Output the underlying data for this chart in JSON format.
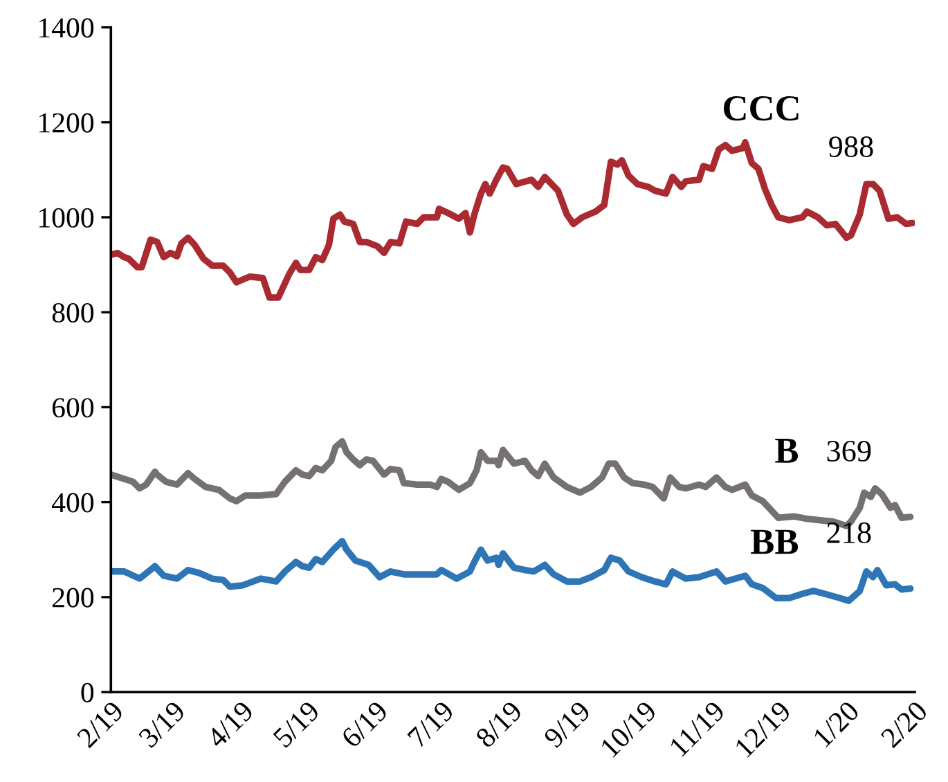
{
  "chart_data": {
    "type": "line",
    "ylim": [
      0,
      1400
    ],
    "yticks": [
      0,
      200,
      400,
      600,
      800,
      1000,
      1200,
      1400
    ],
    "xlim": [
      "2019-02-01",
      "2020-02-01"
    ],
    "xticks": [
      {
        "value": "2019-02-01",
        "label": "2/19"
      },
      {
        "value": "2019-03-01",
        "label": "3/19"
      },
      {
        "value": "2019-04-01",
        "label": "4/19"
      },
      {
        "value": "2019-05-01",
        "label": "5/19"
      },
      {
        "value": "2019-06-01",
        "label": "6/19"
      },
      {
        "value": "2019-07-01",
        "label": "7/19"
      },
      {
        "value": "2019-08-01",
        "label": "8/19"
      },
      {
        "value": "2019-09-01",
        "label": "9/19"
      },
      {
        "value": "2019-10-01",
        "label": "10/19"
      },
      {
        "value": "2019-11-01",
        "label": "11/19"
      },
      {
        "value": "2019-12-01",
        "label": "12/19"
      },
      {
        "value": "2020-01-01",
        "label": "1/20"
      },
      {
        "value": "2020-02-01",
        "label": "2/20"
      }
    ],
    "grid": false,
    "marker": "none",
    "line_style": "solid",
    "series": [
      {
        "name": "CCC",
        "color": "#a92b31",
        "x": [
          "2019-02-01",
          "2019-02-04",
          "2019-02-07",
          "2019-02-09",
          "2019-02-13",
          "2019-02-15",
          "2019-02-19",
          "2019-02-22",
          "2019-02-25",
          "2019-02-28",
          "2019-03-03",
          "2019-03-05",
          "2019-03-08",
          "2019-03-11",
          "2019-03-15",
          "2019-03-19",
          "2019-03-24",
          "2019-03-27",
          "2019-03-30",
          "2019-04-05",
          "2019-04-11",
          "2019-04-14",
          "2019-04-18",
          "2019-04-23",
          "2019-04-26",
          "2019-04-28",
          "2019-05-02",
          "2019-05-05",
          "2019-05-08",
          "2019-05-11",
          "2019-05-13",
          "2019-05-16",
          "2019-05-18",
          "2019-05-22",
          "2019-05-25",
          "2019-05-28",
          "2019-06-02",
          "2019-06-05",
          "2019-06-08",
          "2019-06-12",
          "2019-06-15",
          "2019-06-20",
          "2019-06-23",
          "2019-06-29",
          "2019-06-30",
          "2019-07-04",
          "2019-07-09",
          "2019-07-12",
          "2019-07-14",
          "2019-07-16",
          "2019-07-19",
          "2019-07-21",
          "2019-07-23",
          "2019-07-26",
          "2019-07-29",
          "2019-07-31",
          "2019-08-04",
          "2019-08-11",
          "2019-08-14",
          "2019-08-17",
          "2019-08-23",
          "2019-08-27",
          "2019-08-30",
          "2019-09-03",
          "2019-09-09",
          "2019-09-13",
          "2019-09-16",
          "2019-09-19",
          "2019-09-21",
          "2019-09-24",
          "2019-09-28",
          "2019-10-03",
          "2019-10-06",
          "2019-10-11",
          "2019-10-14",
          "2019-10-18",
          "2019-10-20",
          "2019-10-26",
          "2019-10-28",
          "2019-11-01",
          "2019-11-04",
          "2019-11-07",
          "2019-11-10",
          "2019-11-15",
          "2019-11-16",
          "2019-11-19",
          "2019-11-22",
          "2019-11-25",
          "2019-11-28",
          "2019-12-01",
          "2019-12-06",
          "2019-12-12",
          "2019-12-14",
          "2019-12-19",
          "2019-12-23",
          "2019-12-27",
          "2020-01-01",
          "2020-01-03",
          "2020-01-07",
          "2020-01-10",
          "2020-01-13",
          "2020-01-16",
          "2020-01-20",
          "2020-01-24",
          "2020-01-28",
          "2020-01-31"
        ],
        "values": [
          921,
          925,
          916,
          913,
          895,
          895,
          953,
          948,
          916,
          925,
          918,
          945,
          957,
          942,
          913,
          898,
          898,
          884,
          863,
          875,
          872,
          831,
          831,
          881,
          904,
          889,
          889,
          916,
          910,
          942,
          997,
          1006,
          991,
          986,
          948,
          948,
          939,
          925,
          948,
          945,
          991,
          986,
          1000,
          1000,
          1018,
          1009,
          997,
          1009,
          968,
          1006,
          1050,
          1070,
          1050,
          1079,
          1105,
          1102,
          1070,
          1079,
          1064,
          1085,
          1056,
          1006,
          986,
          1000,
          1012,
          1026,
          1117,
          1111,
          1120,
          1088,
          1070,
          1064,
          1056,
          1050,
          1085,
          1064,
          1076,
          1079,
          1108,
          1102,
          1143,
          1152,
          1140,
          1146,
          1158,
          1114,
          1102,
          1059,
          1026,
          1000,
          994,
          1000,
          1012,
          1000,
          983,
          986,
          957,
          962,
          1006,
          1070,
          1070,
          1056,
          997,
          1000,
          986,
          988
        ]
      },
      {
        "name": "B",
        "color": "#767171",
        "x": [
          "2019-02-01",
          "2019-02-07",
          "2019-02-11",
          "2019-02-14",
          "2019-02-17",
          "2019-02-21",
          "2019-02-22",
          "2019-02-26",
          "2019-03-03",
          "2019-03-08",
          "2019-03-11",
          "2019-03-16",
          "2019-03-22",
          "2019-03-27",
          "2019-03-30",
          "2019-04-03",
          "2019-04-10",
          "2019-04-17",
          "2019-04-21",
          "2019-04-26",
          "2019-04-29",
          "2019-05-02",
          "2019-05-05",
          "2019-05-08",
          "2019-05-12",
          "2019-05-14",
          "2019-05-17",
          "2019-05-19",
          "2019-05-22",
          "2019-05-25",
          "2019-05-28",
          "2019-05-31",
          "2019-06-05",
          "2019-06-08",
          "2019-06-12",
          "2019-06-14",
          "2019-06-20",
          "2019-06-26",
          "2019-06-29",
          "2019-07-01",
          "2019-07-04",
          "2019-07-09",
          "2019-07-14",
          "2019-07-17",
          "2019-07-19",
          "2019-07-22",
          "2019-07-26",
          "2019-07-27",
          "2019-07-29",
          "2019-08-03",
          "2019-08-08",
          "2019-08-11",
          "2019-08-14",
          "2019-08-17",
          "2019-08-21",
          "2019-08-27",
          "2019-09-02",
          "2019-09-07",
          "2019-09-12",
          "2019-09-15",
          "2019-09-18",
          "2019-09-22",
          "2019-09-26",
          "2019-10-01",
          "2019-10-05",
          "2019-10-10",
          "2019-10-13",
          "2019-10-17",
          "2019-10-20",
          "2019-10-26",
          "2019-10-29",
          "2019-11-03",
          "2019-11-07",
          "2019-11-10",
          "2019-11-16",
          "2019-11-19",
          "2019-11-24",
          "2019-11-28",
          "2019-12-01",
          "2019-12-08",
          "2019-12-14",
          "2019-12-20",
          "2019-12-26",
          "2020-01-01",
          "2020-01-03",
          "2020-01-07",
          "2020-01-09",
          "2020-01-12",
          "2020-01-14",
          "2020-01-17",
          "2020-01-21",
          "2020-01-23",
          "2020-01-26",
          "2020-01-30"
        ],
        "values": [
          458,
          449,
          443,
          429,
          437,
          464,
          458,
          443,
          437,
          461,
          449,
          432,
          426,
          408,
          402,
          414,
          414,
          417,
          443,
          467,
          458,
          455,
          472,
          467,
          487,
          516,
          528,
          505,
          490,
          478,
          490,
          487,
          458,
          470,
          467,
          440,
          437,
          437,
          432,
          449,
          443,
          426,
          440,
          467,
          505,
          487,
          487,
          478,
          510,
          481,
          487,
          467,
          455,
          481,
          452,
          432,
          420,
          432,
          452,
          481,
          481,
          452,
          440,
          437,
          432,
          408,
          452,
          432,
          429,
          437,
          432,
          452,
          432,
          426,
          437,
          414,
          402,
          382,
          367,
          370,
          365,
          362,
          359,
          350,
          359,
          388,
          420,
          411,
          429,
          417,
          388,
          394,
          367,
          369
        ]
      },
      {
        "name": "BB",
        "color": "#2e75b6",
        "x": [
          "2019-02-01",
          "2019-02-07",
          "2019-02-14",
          "2019-02-21",
          "2019-02-25",
          "2019-03-03",
          "2019-03-08",
          "2019-03-13",
          "2019-03-19",
          "2019-03-24",
          "2019-03-27",
          "2019-04-02",
          "2019-04-10",
          "2019-04-17",
          "2019-04-21",
          "2019-04-26",
          "2019-04-29",
          "2019-05-02",
          "2019-05-05",
          "2019-05-08",
          "2019-05-13",
          "2019-05-17",
          "2019-05-19",
          "2019-05-23",
          "2019-05-29",
          "2019-06-03",
          "2019-06-08",
          "2019-06-14",
          "2019-06-23",
          "2019-06-29",
          "2019-07-01",
          "2019-07-08",
          "2019-07-14",
          "2019-07-16",
          "2019-07-19",
          "2019-07-22",
          "2019-07-26",
          "2019-07-27",
          "2019-07-29",
          "2019-08-03",
          "2019-08-08",
          "2019-08-12",
          "2019-08-17",
          "2019-08-21",
          "2019-08-27",
          "2019-09-02",
          "2019-09-07",
          "2019-09-13",
          "2019-09-16",
          "2019-09-20",
          "2019-09-24",
          "2019-09-30",
          "2019-10-06",
          "2019-10-11",
          "2019-10-14",
          "2019-10-20",
          "2019-10-26",
          "2019-11-03",
          "2019-11-07",
          "2019-11-16",
          "2019-11-19",
          "2019-11-24",
          "2019-11-30",
          "2019-12-06",
          "2019-12-12",
          "2019-12-17",
          "2019-12-22",
          "2019-12-29",
          "2020-01-02",
          "2020-01-07",
          "2020-01-10",
          "2020-01-13",
          "2020-01-15",
          "2020-01-19",
          "2020-01-23",
          "2020-01-26",
          "2020-01-30"
        ],
        "values": [
          254,
          254,
          239,
          265,
          245,
          239,
          257,
          251,
          239,
          236,
          222,
          225,
          239,
          233,
          254,
          274,
          265,
          262,
          280,
          274,
          300,
          318,
          300,
          277,
          268,
          242,
          254,
          248,
          248,
          248,
          257,
          239,
          254,
          274,
          300,
          277,
          283,
          268,
          292,
          262,
          257,
          254,
          268,
          248,
          233,
          233,
          242,
          257,
          283,
          277,
          254,
          242,
          233,
          227,
          254,
          239,
          242,
          254,
          233,
          245,
          227,
          219,
          198,
          198,
          207,
          213,
          207,
          198,
          192,
          213,
          254,
          242,
          257,
          225,
          227,
          216,
          218
        ]
      }
    ],
    "annotations": [
      "988",
      "369",
      "218"
    ]
  }
}
